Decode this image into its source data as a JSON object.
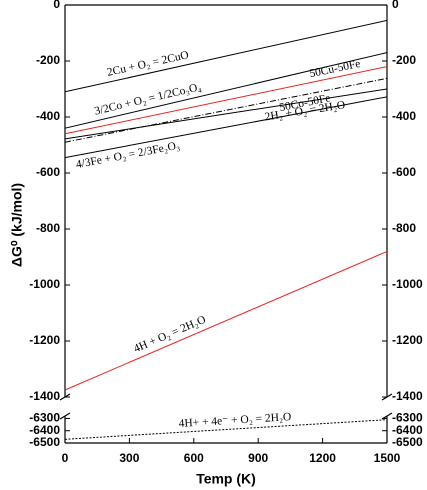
{
  "chart_data": [
    {
      "type": "line",
      "ylabel": "ΔG⁰ (kJ/mol)",
      "x": [
        0,
        1500
      ],
      "xlim": [
        0,
        1500
      ],
      "ylim": [
        -1400,
        0
      ],
      "yticks": [
        0,
        -200,
        -400,
        -600,
        -800,
        -1000,
        -1200,
        -1400
      ],
      "series": [
        {
          "name": "2Cu + O₂ = 2CuO",
          "color": "#000000",
          "style": "solid",
          "values": [
            -310,
            -55
          ]
        },
        {
          "name": "3/2Co + O₂ = 1/2Co₃O₄",
          "color": "#000000",
          "style": "solid",
          "values": [
            -440,
            -170
          ]
        },
        {
          "name": "50Cu-50Fe",
          "color": "#e8231e",
          "style": "solid",
          "values": [
            -460,
            -220
          ]
        },
        {
          "name": "50Co-50Fe",
          "color": "#000000",
          "style": "dashdot",
          "values": [
            -490,
            -262
          ]
        },
        {
          "name": "2H₂ + O₂ = 2H₂O",
          "color": "#000000",
          "style": "solid",
          "values": [
            -478,
            -300
          ]
        },
        {
          "name": "4/3Fe + O₂ = 2/3Fe₂O₃",
          "color": "#000000",
          "style": "solid",
          "values": [
            -545,
            -328
          ]
        },
        {
          "name": "4H + O₂ = 2H₂O",
          "color": "#e8231e",
          "style": "solid",
          "values": [
            -1375,
            -880
          ]
        }
      ]
    },
    {
      "type": "line",
      "xlabel": "Temp (K)",
      "x": [
        0,
        1500
      ],
      "xlim": [
        0,
        1500
      ],
      "xticks": [
        0,
        300,
        600,
        900,
        1200,
        1500
      ],
      "ylim": [
        -6500,
        -6280
      ],
      "yticks": [
        -6300,
        -6400,
        -6500
      ],
      "series": [
        {
          "name": "4H+ + 4e⁻ + O₂ = 2H₂O",
          "color": "#000000",
          "style": "dotted",
          "values": [
            -6470,
            -6310
          ]
        }
      ]
    }
  ]
}
